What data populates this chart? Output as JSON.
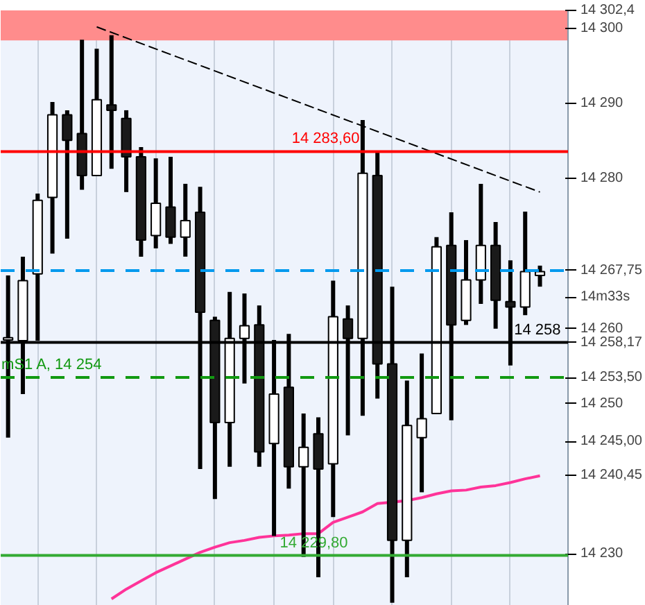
{
  "chart_data": {
    "type": "candlestick",
    "categories": [
      null,
      null,
      null,
      null,
      null,
      null,
      null,
      null,
      null,
      null,
      null,
      null,
      null,
      null,
      null,
      null,
      null,
      null,
      null,
      null,
      null,
      null,
      null,
      null,
      null,
      null,
      null,
      null,
      null,
      null,
      null,
      null,
      null,
      null,
      null,
      null,
      null
    ],
    "ohlc": [
      [
        14258.5,
        14267.1,
        14245.5,
        14258.5
      ],
      [
        14258.4,
        14269.6,
        14251.3,
        14266.4
      ],
      [
        14267.3,
        14278.0,
        14258.4,
        14277.1
      ],
      [
        14277.5,
        14290.2,
        14270.0,
        14288.5
      ],
      [
        14288.5,
        14289.1,
        14272.0,
        14285.1
      ],
      [
        14286.0,
        14298.5,
        14278.5,
        14280.4
      ],
      [
        14280.4,
        14297.3,
        14280.4,
        14290.5
      ],
      [
        14289.8,
        14299.1,
        14281.3,
        14289.1
      ],
      [
        14288.0,
        14289.1,
        14278.2,
        14282.9
      ],
      [
        14282.9,
        14284.2,
        14269.6,
        14271.8
      ],
      [
        14272.4,
        14282.7,
        14270.7,
        14276.7
      ],
      [
        14276.2,
        14282.9,
        14271.3,
        14272.2
      ],
      [
        14272.2,
        14279.3,
        14269.6,
        14274.4
      ],
      [
        14275.5,
        14278.9,
        14241.3,
        14262.2
      ],
      [
        14261.1,
        14261.6,
        14237.3,
        14247.5
      ],
      [
        14247.5,
        14264.9,
        14241.6,
        14258.7
      ],
      [
        14258.7,
        14264.7,
        14252.7,
        14260.4
      ],
      [
        14260.5,
        14263.1,
        14241.6,
        14243.6
      ],
      [
        14244.7,
        14258.5,
        14232.4,
        14251.3
      ],
      [
        14252.2,
        14259.3,
        14238.7,
        14241.6
      ],
      [
        14241.6,
        14248.7,
        14229.6,
        14244.2
      ],
      [
        14246.0,
        14248.2,
        14226.9,
        14241.3
      ],
      [
        14242.0,
        14266.4,
        14234.9,
        14261.6
      ],
      [
        14261.3,
        14263.1,
        14245.8,
        14258.7
      ],
      [
        14258.7,
        14287.8,
        14248.4,
        14280.7
      ],
      [
        14280.4,
        14283.5,
        14250.7,
        14255.3
      ],
      [
        14255.3,
        14265.6,
        14223.5,
        14231.8
      ],
      [
        14231.8,
        14253.1,
        14226.9,
        14247.1
      ],
      [
        14245.5,
        14256.7,
        14238.2,
        14248.0
      ],
      [
        14248.7,
        14272.2,
        14248.7,
        14270.9
      ],
      [
        14271.1,
        14275.5,
        14247.8,
        14260.5
      ],
      [
        14261.1,
        14271.8,
        14260.5,
        14266.5
      ],
      [
        14266.5,
        14279.3,
        14263.3,
        14271.1
      ],
      [
        14271.1,
        14274.2,
        14260.0,
        14263.8
      ],
      [
        14263.6,
        14269.1,
        14255.1,
        14262.9
      ],
      [
        14262.9,
        14275.6,
        14261.8,
        14267.6
      ],
      [
        14267.1,
        14268.4,
        14265.6,
        14267.6
      ]
    ],
    "colors": [
      "#ffffff",
      "#ffffff",
      "#ffffff",
      "#ffffff",
      "#1a1a1a",
      "#1a1a1a",
      "#ffffff",
      "#1a1a1a",
      "#1a1a1a",
      "#1a1a1a",
      "#ffffff",
      "#1a1a1a",
      "#ffffff",
      "#1a1a1a",
      "#1a1a1a",
      "#ffffff",
      "#ffffff",
      "#1a1a1a",
      "#ffffff",
      "#1a1a1a",
      "#ffffff",
      "#1a1a1a",
      "#ffffff",
      "#1a1a1a",
      "#ffffff",
      "#1a1a1a",
      "#1a1a1a",
      "#ffffff",
      "#ffffff",
      "#ffffff",
      "#1a1a1a",
      "#ffffff",
      "#ffffff",
      "#1a1a1a",
      "#1a1a1a",
      "#ffffff",
      "#ffffff"
    ],
    "series": [
      {
        "type": "line",
        "color": "#ff3399",
        "values": [
          null,
          null,
          null,
          null,
          null,
          null,
          null,
          14224.0,
          14225.3,
          14226.4,
          14227.5,
          14228.4,
          14229.3,
          14230.2,
          14230.9,
          14231.5,
          14231.8,
          14232.2,
          14232.4,
          14232.5,
          14232.7,
          14232.7,
          14234.2,
          14234.9,
          14235.6,
          14236.7,
          14236.9,
          14237.1,
          14237.5,
          14238.0,
          14238.4,
          14238.5,
          14238.9,
          14239.1,
          14239.5,
          14240.0,
          14240.4
        ]
      },
      {
        "type": "line",
        "color": "#000000",
        "line_style": "dashed",
        "values": [
          null,
          null,
          null,
          null,
          null,
          null,
          14300.2,
          null,
          null,
          null,
          null,
          null,
          null,
          null,
          null,
          null,
          null,
          null,
          null,
          null,
          null,
          null,
          null,
          null,
          null,
          null,
          null,
          null,
          null,
          null,
          null,
          null,
          null,
          null,
          null,
          null,
          14278.2
        ]
      }
    ],
    "ylim": [
      14223.1,
      14302.4
    ],
    "yticks": [
      {
        "value": 14230,
        "label": "14 230"
      },
      {
        "value": 14240.45,
        "label": "14 240,45"
      },
      {
        "value": 14245.0,
        "label": "14 245,00"
      },
      {
        "value": 14250,
        "label": "14 250"
      },
      {
        "value": 14253.5,
        "label": "14 253,50"
      },
      {
        "value": 14258.17,
        "label": "14 258,17"
      },
      {
        "value": 14260,
        "label": "14 260"
      },
      {
        "value": 14264.2,
        "label": "14m33s"
      },
      {
        "value": 14267.75,
        "label": "14 267,75"
      },
      {
        "value": 14280,
        "label": "14 280"
      },
      {
        "value": 14290,
        "label": "14 290"
      },
      {
        "value": 14300,
        "label": "14 300"
      },
      {
        "value": 14302.4,
        "label": "14 302,4"
      }
    ],
    "bands": [
      {
        "axis": "y",
        "from": 14298.4,
        "to": 14302.4,
        "color": "#ff8c8c"
      }
    ],
    "ref_lines": [
      {
        "axis": "y",
        "value": 14283.6,
        "label": "14 283,60",
        "color": "#ff0000",
        "line_style": "solid"
      },
      {
        "axis": "y",
        "value": 14267.75,
        "color": "#0099ee",
        "line_style": "dashed"
      },
      {
        "axis": "y",
        "value": 14253.5,
        "label": "mS1 A, 14 254",
        "color": "#119911",
        "line_style": "dashed"
      },
      {
        "axis": "y",
        "value": 14258.17,
        "label": "14 258",
        "color": "#000000",
        "line_style": "solid"
      },
      {
        "axis": "y",
        "value": 14229.8,
        "label": "14 229,80",
        "color": "#33aa33",
        "line_style": "solid"
      }
    ],
    "grid": "x"
  }
}
